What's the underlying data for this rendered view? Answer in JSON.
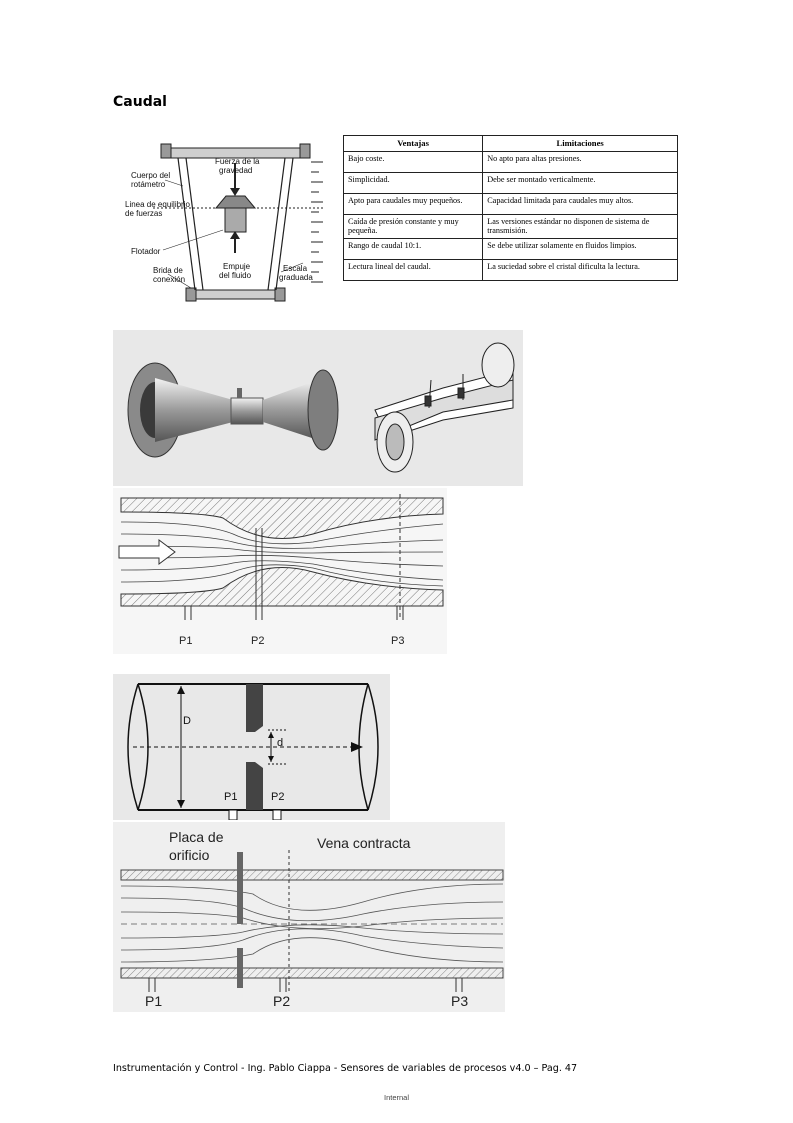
{
  "page": {
    "title": "Caudal",
    "footer": "Instrumentación y Control - Ing. Pablo Ciappa - Sensores de variables de procesos v4.0 – Pag. 47",
    "classification": "Internal"
  },
  "rotameter": {
    "labels": {
      "cuerpo": "Cuerpo del",
      "cuerpo2": "rotámetro",
      "linea": "Linea de equilibrio",
      "linea2": "de fuerzas",
      "flotador": "Flotador",
      "brida": "Brida de",
      "brida2": "conexión",
      "fuerza": "Fuerza de la",
      "fuerza2": "gravedad",
      "empuje": "Empuje",
      "empuje2": "del fluido",
      "escala": "Escala",
      "escala2": "graduada"
    }
  },
  "table": {
    "headers": [
      "Ventajas",
      "Limitaciones"
    ],
    "rows": [
      [
        "Bajo coste.",
        "No apto para altas presiones."
      ],
      [
        "Simplicidad.",
        "Debe ser montado verticalmente."
      ],
      [
        "Apto para caudales muy pequeños.",
        "Capacidad limitada para caudales muy altos."
      ],
      [
        "Caída de presión constante y muy pequeña.",
        "Las versiones estándar no disponen de sistema de transmisión."
      ],
      [
        "Rango de caudal 10:1.",
        "Se debe utilizar solamente en fluidos limpios."
      ],
      [
        "Lectura lineal del caudal.",
        "La suciedad sobre el cristal dificulta la lectura."
      ]
    ]
  },
  "venturi_flow": {
    "p1": "P1",
    "p2": "P2",
    "p3": "P3"
  },
  "orifice_plate": {
    "D": "D",
    "d": "d",
    "p1": "P1",
    "p2": "P2"
  },
  "orifice_flow": {
    "placa": "Placa de",
    "placa2": "orificio",
    "vena": "Vena contracta",
    "p1": "P1",
    "p2": "P2",
    "p3": "P3"
  }
}
